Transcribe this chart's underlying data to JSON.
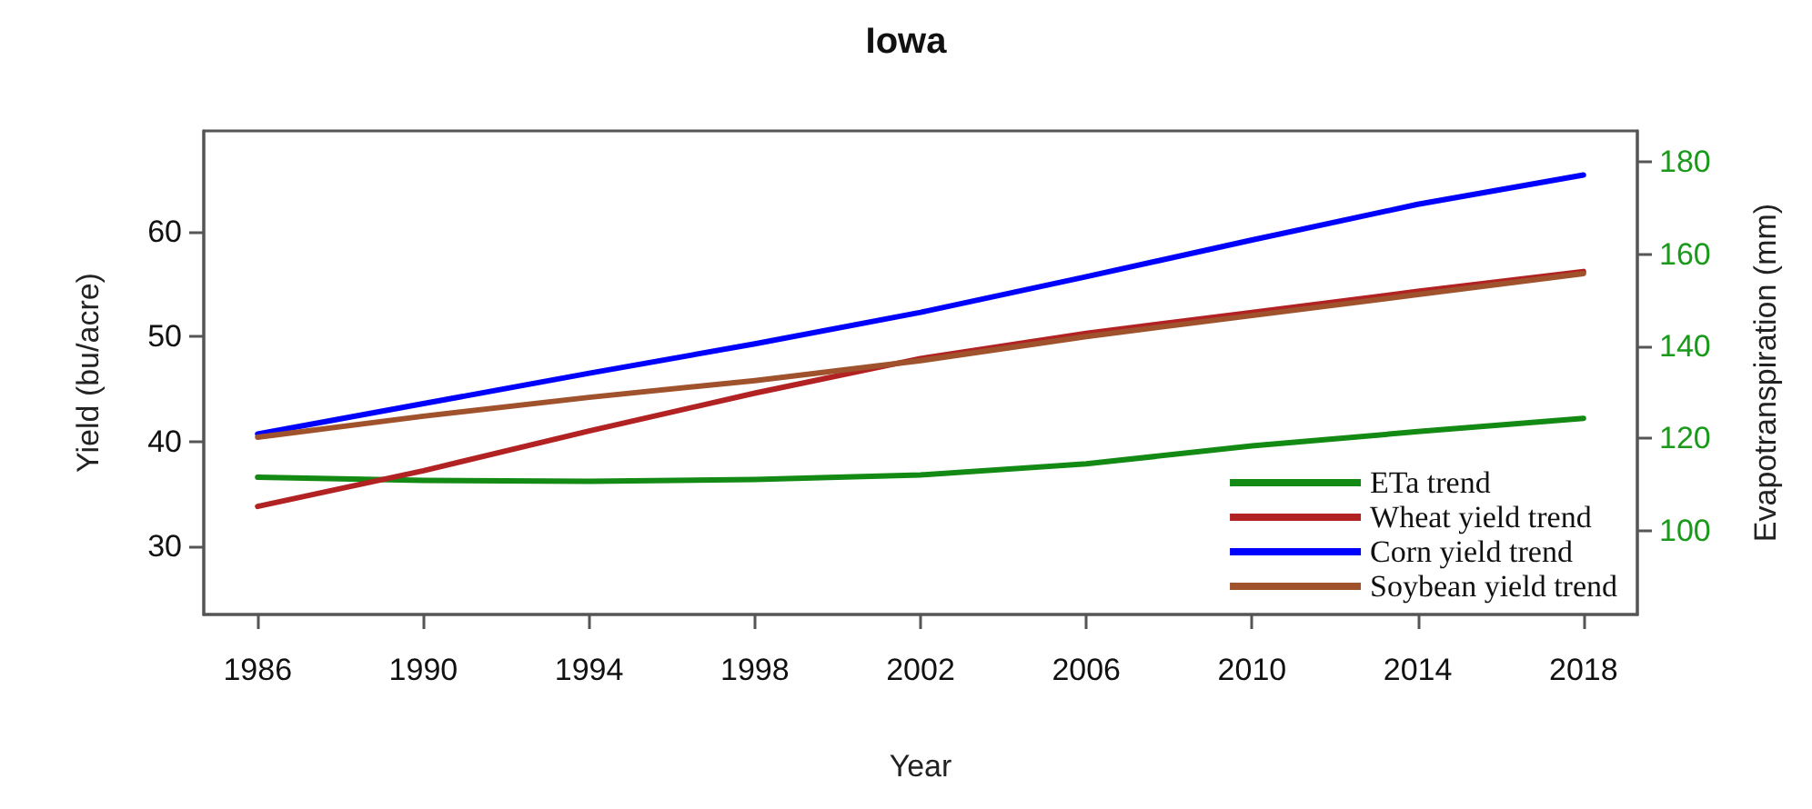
{
  "chart_data": {
    "type": "line",
    "title": "Iowa",
    "xlabel": "Year",
    "ylabel": "Yield (bu/acre)",
    "y2label": "Evapotranspiration (mm)",
    "x": [
      1986,
      1990,
      1994,
      1998,
      2002,
      2006,
      2010,
      2014,
      2018
    ],
    "series": [
      {
        "name": "ETa trend",
        "color": "#138a13",
        "axis": "y2",
        "values": [
          111.6,
          110.9,
          110.7,
          111.1,
          112.1,
          114.5,
          118.4,
          121.5,
          124.4
        ]
      },
      {
        "name": "Wheat yield trend",
        "color": "#b22222",
        "values": [
          33.8,
          37.2,
          41.0,
          44.6,
          47.9,
          50.3,
          52.3,
          54.3,
          56.2
        ]
      },
      {
        "name": "Corn yield trend",
        "color": "#0000ff",
        "values": [
          40.7,
          43.6,
          46.5,
          49.3,
          52.3,
          55.7,
          59.2,
          62.6,
          65.4
        ]
      },
      {
        "name": "Soybean yield trend",
        "color": "#a0522d",
        "values": [
          40.4,
          42.4,
          44.2,
          45.8,
          47.7,
          50.0,
          52.0,
          54.0,
          56.0
        ]
      }
    ],
    "xlim": [
      1984.7,
      2019.3
    ],
    "xticks": [
      1986,
      1990,
      1994,
      1998,
      2002,
      2006,
      2010,
      2014,
      2018
    ],
    "ylim": [
      23.5,
      69.6
    ],
    "yticks": [
      30,
      40,
      50,
      60
    ],
    "y2lim": [
      81.8,
      186.8
    ],
    "y2ticks": [
      100,
      120,
      140,
      160,
      180
    ],
    "legend": "bottom right",
    "grid": false,
    "marker": "none",
    "line_style": "solid"
  }
}
